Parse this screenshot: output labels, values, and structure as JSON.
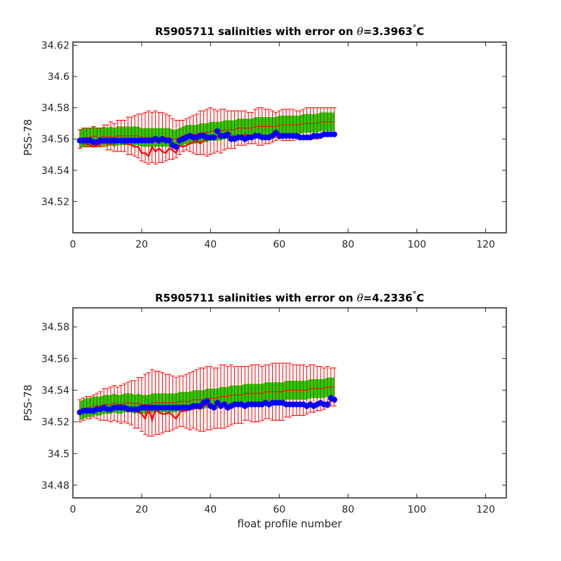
{
  "colors": {
    "measured": "#ff0000",
    "mapped_band": "#00e000",
    "calibrated": "#0000ff",
    "axis": "#262626"
  },
  "chart_data": [
    {
      "type": "line",
      "title_prefix": "R5905711 salinities with error on ",
      "title_symbol": "θ",
      "title_value": "=3.3963",
      "title_degree": "°",
      "title_unit": "C",
      "xlabel": "",
      "ylabel": "PSS-78",
      "xlim": [
        0,
        126
      ],
      "ylim": [
        34.5,
        34.622
      ],
      "xticks": [
        0,
        20,
        40,
        60,
        80,
        100,
        120
      ],
      "yticks": [
        34.52,
        34.54,
        34.56,
        34.58,
        34.6,
        34.62
      ],
      "ytick_labels": [
        "34.52",
        "34.54",
        "34.56",
        "34.58",
        "34.6",
        "34.62"
      ],
      "x_start": 2,
      "x_step": 1,
      "series": [
        {
          "role": "measured",
          "style": "red-line",
          "values": [
            34.558,
            34.557,
            34.557,
            34.556,
            34.555,
            34.556,
            34.557,
            34.558,
            34.557,
            34.557,
            34.557,
            34.558,
            34.558,
            34.557,
            34.557,
            34.556,
            34.555,
            34.555,
            34.551,
            34.551,
            34.549,
            34.555,
            34.552,
            34.554,
            34.552,
            34.551,
            34.554,
            34.553,
            34.551,
            34.556,
            34.555,
            34.556,
            34.557,
            34.558,
            34.559,
            34.557,
            34.559,
            34.56,
            34.561,
            34.56,
            34.562,
            34.561,
            34.563,
            34.561,
            34.562,
            34.562,
            34.561,
            34.561,
            34.563,
            34.562,
            34.562,
            34.562,
            34.561,
            34.561,
            34.561,
            34.562,
            34.561,
            34.562,
            34.562,
            34.563,
            34.562,
            34.561,
            34.562,
            34.561,
            34.562,
            34.562,
            34.562,
            34.562,
            34.562,
            34.561,
            34.561,
            34.562,
            34.563,
            34.562,
            34.562
          ]
        },
        {
          "role": "mapped",
          "style": "green-band-with-red-errorbars",
          "values": [
            34.56,
            34.561,
            34.561,
            34.561,
            34.562,
            34.561,
            34.561,
            34.562,
            34.561,
            34.562,
            34.561,
            34.562,
            34.562,
            34.562,
            34.562,
            34.562,
            34.562,
            34.562,
            34.561,
            34.561,
            34.561,
            34.561,
            34.561,
            34.561,
            34.561,
            34.561,
            34.561,
            34.56,
            34.56,
            34.561,
            34.562,
            34.563,
            34.563,
            34.563,
            34.563,
            34.564,
            34.564,
            34.564,
            34.565,
            34.565,
            34.565,
            34.565,
            34.566,
            34.566,
            34.566,
            34.566,
            34.567,
            34.567,
            34.567,
            34.567,
            34.567,
            34.568,
            34.568,
            34.568,
            34.568,
            34.568,
            34.568,
            34.568,
            34.569,
            34.569,
            34.569,
            34.569,
            34.569,
            34.569,
            34.569,
            34.57,
            34.57,
            34.57,
            34.57,
            34.57,
            34.571,
            34.571,
            34.571,
            34.571,
            34.571
          ],
          "band_half_width": 0.006,
          "error": [
            0.006,
            0.006,
            0.006,
            0.006,
            0.006,
            0.006,
            0.006,
            0.007,
            0.008,
            0.009,
            0.009,
            0.01,
            0.01,
            0.01,
            0.012,
            0.012,
            0.013,
            0.014,
            0.015,
            0.016,
            0.017,
            0.016,
            0.017,
            0.016,
            0.016,
            0.015,
            0.014,
            0.013,
            0.012,
            0.011,
            0.01,
            0.01,
            0.011,
            0.012,
            0.013,
            0.014,
            0.014,
            0.015,
            0.015,
            0.014,
            0.013,
            0.014,
            0.013,
            0.012,
            0.012,
            0.012,
            0.011,
            0.011,
            0.011,
            0.01,
            0.01,
            0.011,
            0.012,
            0.012,
            0.011,
            0.011,
            0.01,
            0.009,
            0.009,
            0.01,
            0.01,
            0.01,
            0.01,
            0.009,
            0.009,
            0.009,
            0.01,
            0.01,
            0.01,
            0.01,
            0.009,
            0.009,
            0.009,
            0.009,
            0.009
          ]
        },
        {
          "role": "calibrated",
          "style": "blue-markers",
          "values": [
            34.559,
            34.559,
            34.559,
            34.559,
            34.558,
            34.558,
            34.559,
            34.559,
            34.559,
            34.559,
            34.559,
            34.559,
            34.559,
            34.559,
            34.559,
            34.559,
            34.559,
            34.559,
            34.559,
            34.559,
            34.559,
            34.559,
            34.56,
            34.559,
            34.56,
            34.559,
            34.559,
            34.556,
            34.555,
            34.559,
            34.56,
            34.561,
            34.562,
            34.561,
            34.561,
            34.562,
            34.562,
            34.561,
            34.561,
            34.561,
            34.565,
            34.562,
            34.562,
            34.563,
            34.56,
            34.56,
            34.561,
            34.561,
            34.56,
            34.561,
            34.561,
            34.562,
            34.562,
            34.561,
            34.561,
            34.561,
            34.562,
            34.564,
            34.562,
            34.562,
            34.562,
            34.562,
            34.562,
            34.562,
            34.561,
            34.561,
            34.561,
            34.561,
            34.562,
            34.562,
            34.562,
            34.563,
            34.563,
            34.563,
            34.563
          ]
        }
      ]
    },
    {
      "type": "line",
      "title_prefix": "R5905711 salinities with error on ",
      "title_symbol": "θ",
      "title_value": "=4.2336",
      "title_degree": "°",
      "title_unit": "C",
      "xlabel": "float profile number",
      "ylabel": "PSS-78",
      "xlim": [
        0,
        126
      ],
      "ylim": [
        34.472,
        34.592
      ],
      "xticks": [
        0,
        20,
        40,
        60,
        80,
        100,
        120
      ],
      "yticks": [
        34.48,
        34.5,
        34.52,
        34.54,
        34.56,
        34.58
      ],
      "ytick_labels": [
        "34.48",
        "34.5",
        "34.52",
        "34.54",
        "34.56",
        "34.58"
      ],
      "x_start": 2,
      "x_step": 1,
      "series": [
        {
          "role": "measured",
          "style": "red-line",
          "values": [
            34.526,
            34.526,
            34.526,
            34.526,
            34.526,
            34.527,
            34.527,
            34.528,
            34.527,
            34.527,
            34.528,
            34.528,
            34.528,
            34.528,
            34.527,
            34.527,
            34.527,
            34.526,
            34.525,
            34.522,
            34.529,
            34.521,
            34.528,
            34.526,
            34.525,
            34.525,
            34.526,
            34.524,
            34.522,
            34.526,
            34.527,
            34.527,
            34.528,
            34.528,
            34.529,
            34.528,
            34.53,
            34.531,
            34.53,
            34.529,
            34.531,
            34.53,
            34.531,
            34.529,
            34.53,
            34.531,
            34.532,
            34.531,
            34.53,
            34.531,
            34.531,
            34.53,
            34.531,
            34.531,
            34.532,
            34.531,
            34.532,
            34.532,
            34.531,
            34.532,
            34.532,
            34.531,
            34.532,
            34.532,
            34.531,
            34.531,
            34.531,
            34.531,
            34.531,
            34.531,
            34.531,
            34.532,
            34.532,
            34.533,
            34.534
          ]
        },
        {
          "role": "mapped",
          "style": "green-band-with-red-errorbars",
          "values": [
            34.527,
            34.528,
            34.529,
            34.529,
            34.53,
            34.53,
            34.53,
            34.531,
            34.531,
            34.531,
            34.532,
            34.531,
            34.531,
            34.532,
            34.532,
            34.532,
            34.531,
            34.532,
            34.531,
            34.531,
            34.531,
            34.532,
            34.532,
            34.532,
            34.532,
            34.532,
            34.532,
            34.532,
            34.532,
            34.533,
            34.533,
            34.533,
            34.533,
            34.534,
            34.534,
            34.534,
            34.534,
            34.535,
            34.535,
            34.535,
            34.535,
            34.536,
            34.536,
            34.536,
            34.537,
            34.537,
            34.537,
            34.537,
            34.538,
            34.538,
            34.538,
            34.538,
            34.538,
            34.538,
            34.539,
            34.539,
            34.539,
            34.539,
            34.539,
            34.539,
            34.54,
            34.54,
            34.54,
            34.54,
            34.54,
            34.54,
            34.54,
            34.541,
            34.541,
            34.541,
            34.541,
            34.541,
            34.542,
            34.542,
            34.542
          ],
          "band_half_width": 0.006,
          "error": [
            0.007,
            0.007,
            0.007,
            0.007,
            0.007,
            0.008,
            0.009,
            0.01,
            0.01,
            0.011,
            0.011,
            0.011,
            0.012,
            0.012,
            0.013,
            0.014,
            0.015,
            0.016,
            0.017,
            0.019,
            0.02,
            0.021,
            0.02,
            0.02,
            0.019,
            0.018,
            0.018,
            0.017,
            0.016,
            0.016,
            0.016,
            0.017,
            0.018,
            0.018,
            0.019,
            0.02,
            0.02,
            0.02,
            0.02,
            0.019,
            0.019,
            0.02,
            0.02,
            0.019,
            0.019,
            0.018,
            0.018,
            0.018,
            0.017,
            0.017,
            0.018,
            0.018,
            0.018,
            0.017,
            0.017,
            0.017,
            0.018,
            0.018,
            0.018,
            0.018,
            0.017,
            0.017,
            0.016,
            0.016,
            0.016,
            0.016,
            0.015,
            0.015,
            0.015,
            0.014,
            0.014,
            0.013,
            0.013,
            0.012,
            0.012
          ]
        },
        {
          "role": "calibrated",
          "style": "blue-markers",
          "values": [
            34.526,
            34.527,
            34.527,
            34.527,
            34.527,
            34.528,
            34.528,
            34.529,
            34.528,
            34.528,
            34.529,
            34.529,
            34.529,
            34.529,
            34.528,
            34.528,
            34.528,
            34.528,
            34.529,
            34.529,
            34.529,
            34.529,
            34.529,
            34.529,
            34.529,
            34.529,
            34.529,
            34.529,
            34.529,
            34.529,
            34.529,
            34.529,
            34.529,
            34.53,
            34.53,
            34.53,
            34.532,
            34.533,
            34.53,
            34.529,
            34.532,
            34.53,
            34.531,
            34.529,
            34.53,
            34.531,
            34.531,
            34.531,
            34.53,
            34.531,
            34.531,
            34.531,
            34.531,
            34.531,
            34.532,
            34.531,
            34.532,
            34.532,
            34.532,
            34.532,
            34.531,
            34.531,
            34.531,
            34.531,
            34.531,
            34.531,
            34.53,
            34.531,
            34.53,
            34.531,
            34.532,
            34.531,
            34.531,
            34.535,
            34.534
          ]
        }
      ]
    }
  ]
}
